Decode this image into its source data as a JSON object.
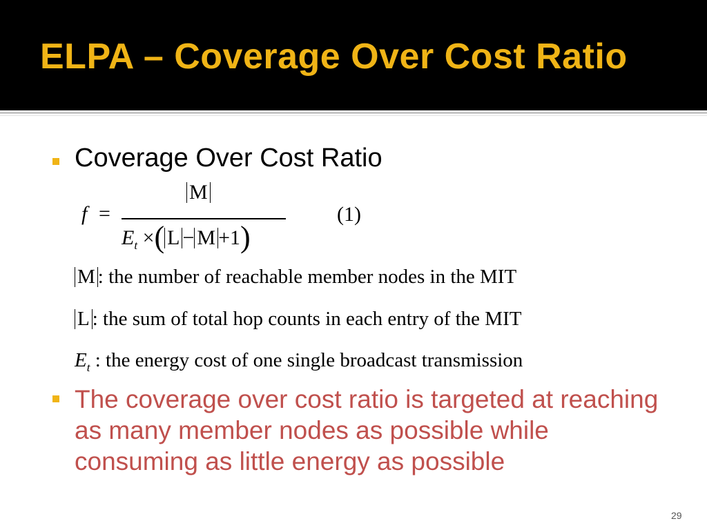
{
  "title": "ELPA – Coverage Over Cost Ratio",
  "bullet1": "Coverage Over Cost Ratio",
  "formula": {
    "lhs": "f",
    "equals": "=",
    "numerator": "M",
    "den_E": "E",
    "den_sub": "t",
    "den_times": "×",
    "den_L": "L",
    "den_minus": "−",
    "den_M": "M",
    "den_plus_one": "+1",
    "eq_number": "(1)"
  },
  "definitions": [
    {
      "symbol": "M",
      "text": ": the number of reachable member nodes in the MIT"
    },
    {
      "symbol": "L",
      "text": ": the sum of total hop counts in each entry of the MIT"
    },
    {
      "symbol": "E",
      "sub": "t",
      "text": " : the energy cost of one single broadcast transmission"
    }
  ],
  "bullet2": "The coverage over cost ratio is targeted at reaching as many member nodes as possible while consuming as little energy as possible",
  "slide_number": "29",
  "colors": {
    "title": "#f0b416",
    "bullet": "#f0b416",
    "highlight_text": "#c0504d",
    "title_bg": "#000000"
  }
}
